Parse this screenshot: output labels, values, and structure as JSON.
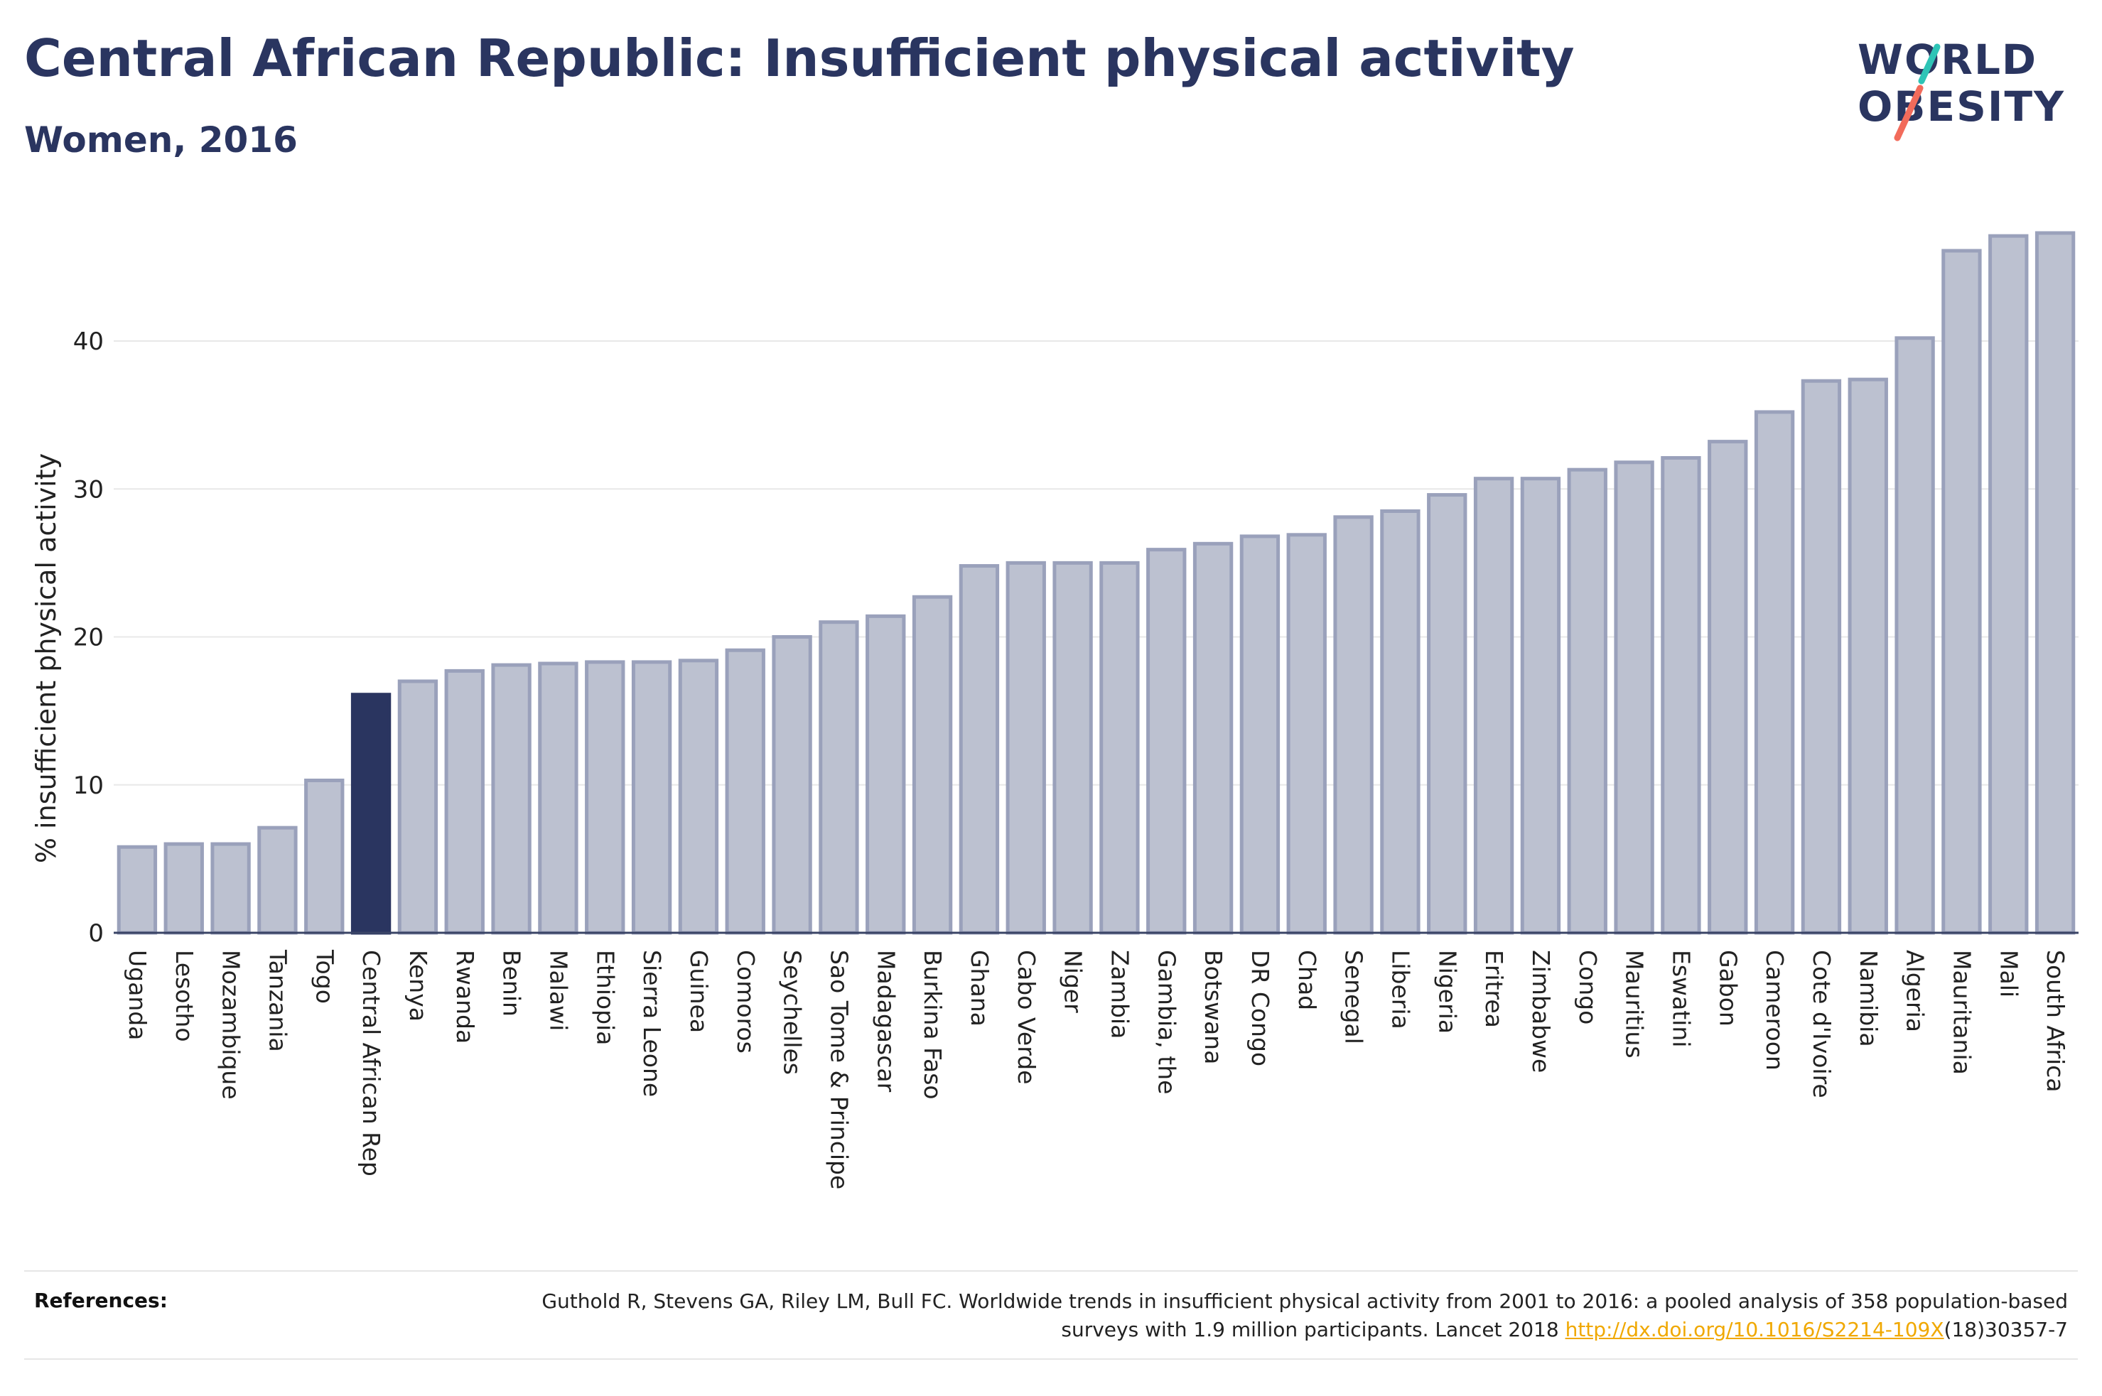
{
  "header": {
    "title": "Central African Republic: Insufficient physical activity",
    "subtitle": "Women, 2016"
  },
  "logo": {
    "line1": "WORLD",
    "line2": "OBESITY",
    "accent_teal": "#2ec4b6",
    "accent_coral": "#f26b5b"
  },
  "colors": {
    "bar_default": "#bcc1d0",
    "bar_border": "#9aa1bb",
    "bar_highlight": "#2a3560",
    "text_dark": "#2a3560",
    "link": "#f0a800"
  },
  "chart_data": {
    "type": "bar",
    "ylabel": "% insufficient physical activity",
    "ylim": [
      0,
      48
    ],
    "yticks": [
      0,
      10,
      20,
      30,
      40
    ],
    "grid": true,
    "highlight": "Central African Rep",
    "categories": [
      "Uganda",
      "Lesotho",
      "Mozambique",
      "Tanzania",
      "Togo",
      "Central African Rep",
      "Kenya",
      "Rwanda",
      "Benin",
      "Malawi",
      "Ethiopia",
      "Sierra Leone",
      "Guinea",
      "Comoros",
      "Seychelles",
      "Sao Tome & Principe",
      "Madagascar",
      "Burkina Faso",
      "Ghana",
      "Cabo Verde",
      "Niger",
      "Zambia",
      "Gambia, the",
      "Botswana",
      "DR Congo",
      "Chad",
      "Senegal",
      "Liberia",
      "Nigeria",
      "Eritrea",
      "Zimbabwe",
      "Congo",
      "Mauritius",
      "Eswatini",
      "Gabon",
      "Cameroon",
      "Cote d'Ivoire",
      "Namibia",
      "Algeria",
      "Mauritania",
      "Mali",
      "South Africa"
    ],
    "values": [
      5.8,
      6.0,
      6.0,
      7.1,
      10.3,
      16.1,
      17.0,
      17.7,
      18.1,
      18.2,
      18.3,
      18.3,
      18.4,
      19.1,
      20.0,
      21.0,
      21.4,
      22.7,
      24.8,
      25.0,
      25.0,
      25.0,
      25.9,
      26.3,
      26.8,
      26.9,
      28.1,
      28.5,
      29.6,
      30.7,
      30.7,
      31.3,
      31.8,
      32.1,
      33.2,
      35.2,
      37.3,
      37.4,
      40.2,
      46.1,
      47.1,
      47.3
    ]
  },
  "references": {
    "label": "References:",
    "text_before": "Guthold R, Stevens GA, Riley LM, Bull FC. Worldwide trends in insufficient physical activity from 2001 to 2016: a pooled analysis of 358 population-based surveys with 1.9 million participants. Lancet 2018 ",
    "link": "http://dx.doi.org/10.1016/S2214-109X",
    "text_after": "(18)30357-7"
  }
}
